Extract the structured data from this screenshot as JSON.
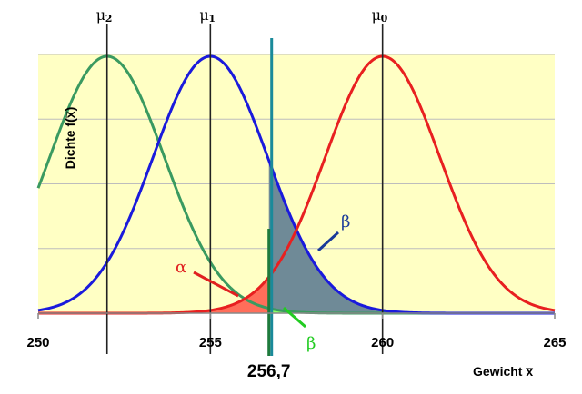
{
  "chart_data": {
    "type": "line",
    "xlabel": "Gewicht x̅",
    "ylabel": "Dichte f(x̅)",
    "xlim": [
      250,
      265
    ],
    "x_ticks": [
      "250",
      "255",
      "260",
      "265"
    ],
    "grid": "horizontal",
    "series": [
      {
        "mean": 252,
        "sd": 1.667,
        "color": "#3a9a60"
      },
      {
        "mean": 255,
        "sd": 1.667,
        "color": "#1a1adc"
      },
      {
        "mean": 260,
        "sd": 1.667,
        "color": "#e82020"
      }
    ],
    "means": [
      {
        "symbol": "μ",
        "sub": "2",
        "x": 252
      },
      {
        "symbol": "μ",
        "sub": "1",
        "x": 255
      },
      {
        "symbol": "μ",
        "sub": "0",
        "x": 260
      }
    ],
    "critical_value": {
      "x": 256.7,
      "label": "256,7"
    },
    "annotations": [
      {
        "text": "α",
        "color": "#e02020"
      },
      {
        "text": "β",
        "color": "#1a3a9a"
      },
      {
        "text": "β",
        "color": "#22cc22"
      }
    ],
    "colors": {
      "plot_background": "#ffffc4",
      "alpha_fill": "#ff6e5a",
      "beta1_fill": "#6f8a97",
      "beta2_fill": "#88ff66",
      "critical_line": "#1a8a9a",
      "critical_line_inner": "#1e7a3c"
    }
  }
}
